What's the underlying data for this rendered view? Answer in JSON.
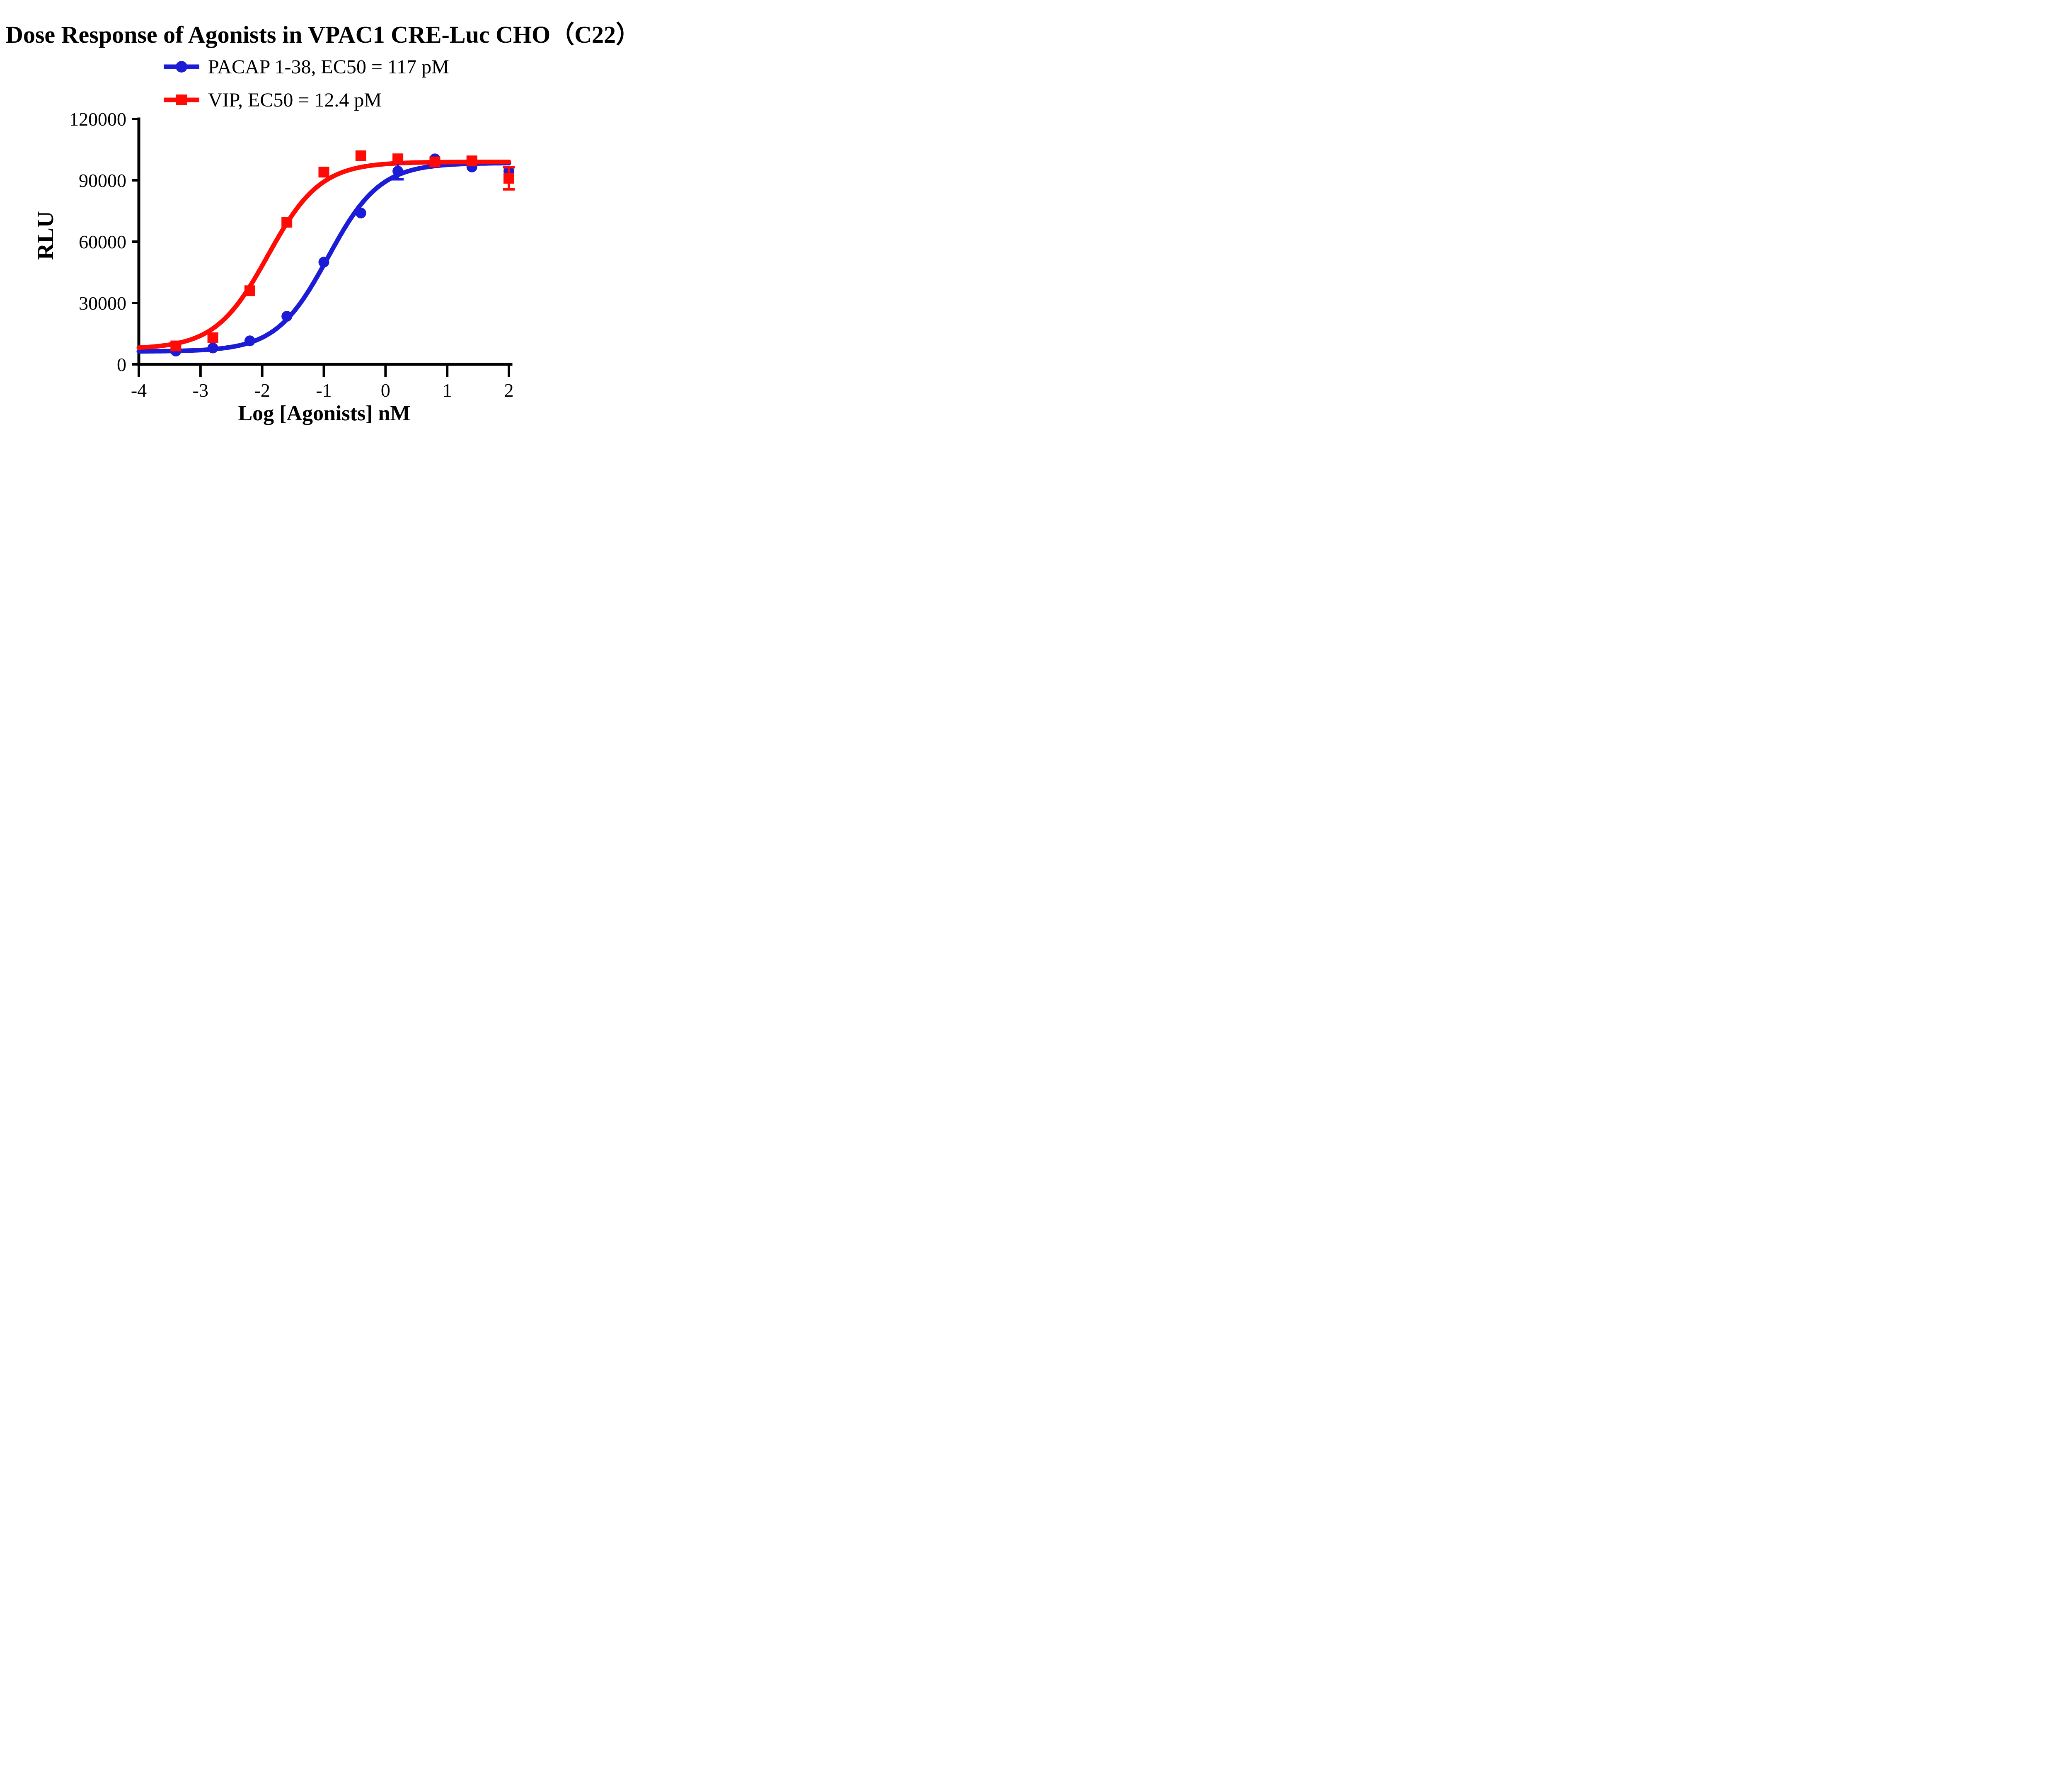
{
  "figure": {
    "title": "Dose Response of Agonists in VPAC1 CRE-Luc CHO（C22）",
    "x_axis_label": "Log [Agonists] nM",
    "y_axis_label": "RLU"
  },
  "chart_data": {
    "type": "scatter",
    "title": "Dose Response of Agonists in VPAC1 CRE-Luc CHO（C22）",
    "xlabel": "Log [Agonists] nM",
    "ylabel": "RLU",
    "xlim": [
      -4,
      2
    ],
    "ylim": [
      0,
      120000
    ],
    "x_ticks": [
      -4,
      -3,
      -2,
      -1,
      0,
      1,
      2
    ],
    "y_ticks": [
      0,
      30000,
      60000,
      90000,
      120000
    ],
    "grid": false,
    "legend_position": "above-plot-left",
    "x": [
      -3.4,
      -2.8,
      -2.2,
      -1.6,
      -1.0,
      -0.4,
      0.2,
      0.8,
      1.4,
      2.0
    ],
    "series": [
      {
        "name": "PACAP 1-38, EC50 = 117 pM",
        "ec50": "117 pM",
        "color": "#1C1CD6",
        "marker": "circle",
        "values": [
          6500,
          8000,
          11500,
          23500,
          50000,
          74000,
          94500,
          100500,
          96500,
          94500
        ],
        "errors": [
          0,
          0,
          0,
          0,
          0,
          0,
          4000,
          0,
          0,
          0
        ],
        "fit": {
          "model": "4PL",
          "bottom": 6300,
          "top": 98500,
          "logEC50": -0.932,
          "hill": 1.03
        }
      },
      {
        "name": "VIP, EC50 = 12.4 pM",
        "ec50": "12.4 pM",
        "color": "#FF0A05",
        "marker": "square",
        "values": [
          9000,
          13000,
          36000,
          69500,
          94000,
          102000,
          100500,
          99000,
          99500,
          91000
        ],
        "errors": [
          0,
          0,
          0,
          0,
          0,
          0,
          0,
          0,
          0,
          5400
        ],
        "fit": {
          "model": "4PL",
          "bottom": 7500,
          "top": 99000,
          "logEC50": -1.907,
          "hill": 1.02
        }
      }
    ]
  }
}
